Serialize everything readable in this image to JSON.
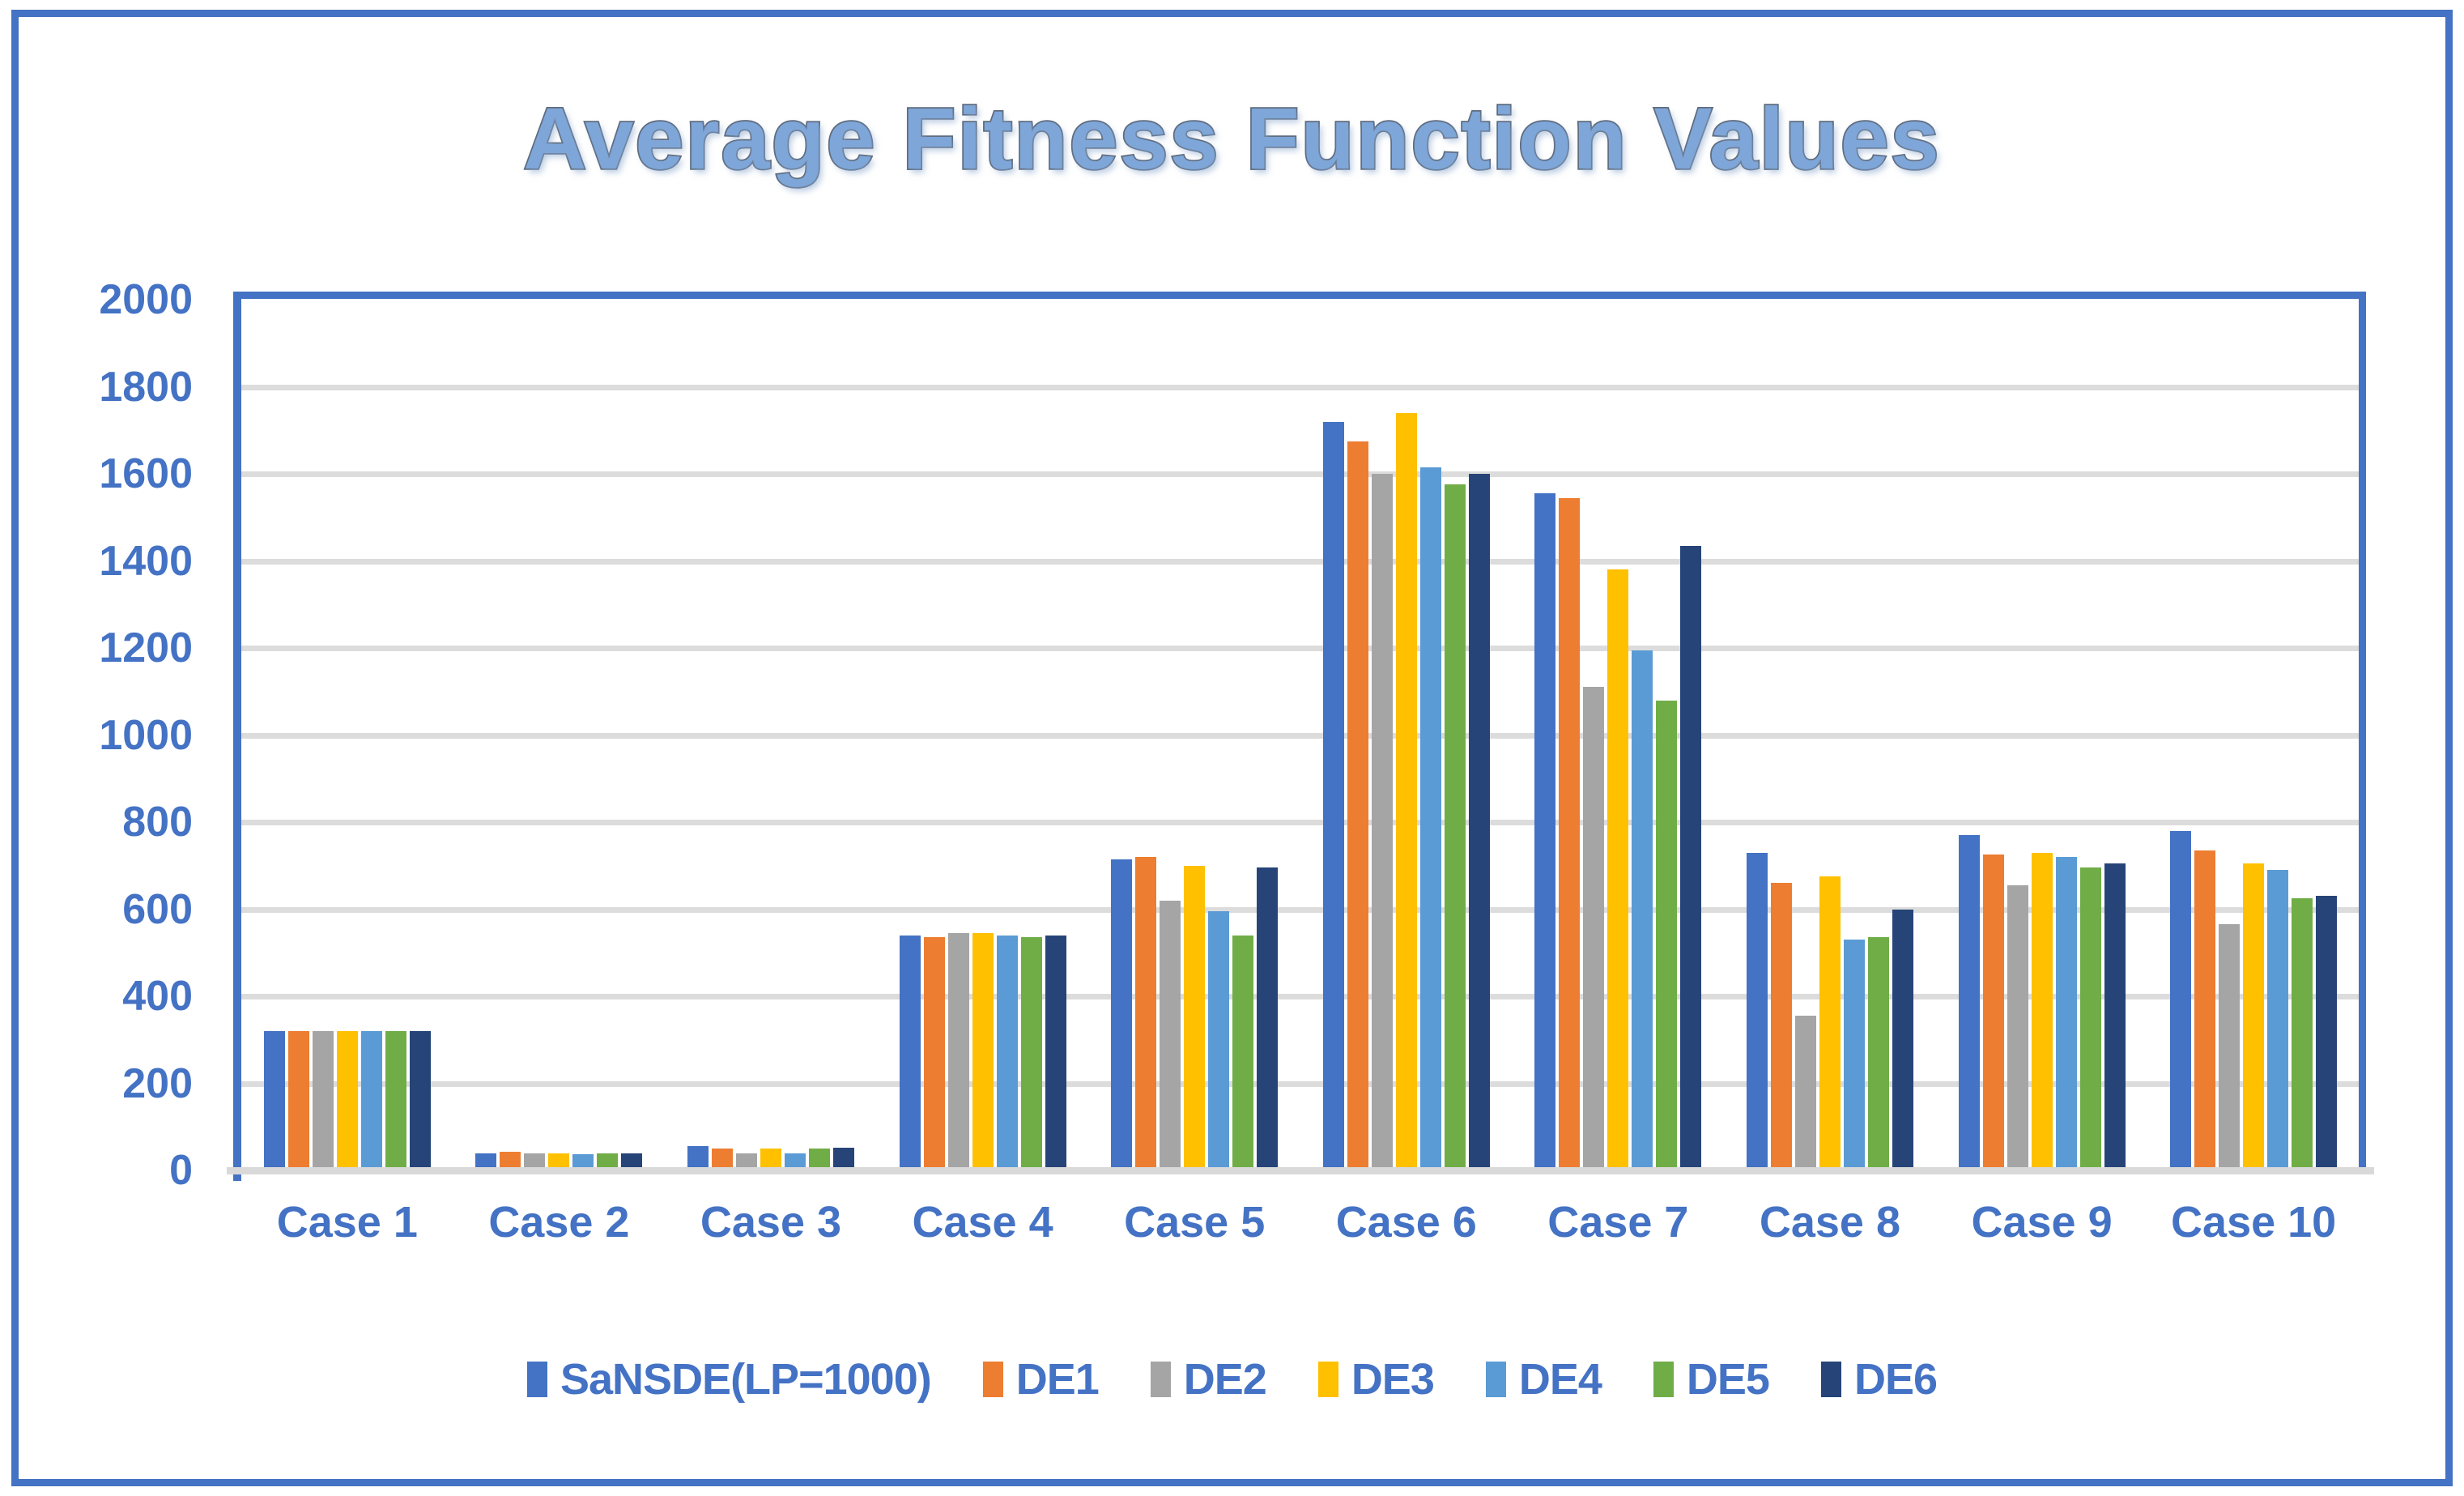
{
  "chart_data": {
    "type": "bar",
    "title": "Average Fitness Function Values",
    "categories": [
      "Case 1",
      "Case 2",
      "Case 3",
      "Case 4",
      "Case 5",
      "Case 6",
      "Case 7",
      "Case 8",
      "Case 9",
      "Case 10"
    ],
    "series": [
      {
        "name": "SaNSDE(LP=1000)",
        "color": "#4472C4",
        "values": [
          320,
          40,
          55,
          540,
          715,
          1720,
          1555,
          730,
          770,
          780
        ]
      },
      {
        "name": "DE1",
        "color": "#ED7D31",
        "values": [
          320,
          42,
          50,
          535,
          720,
          1675,
          1545,
          660,
          725,
          735
        ]
      },
      {
        "name": "DE2",
        "color": "#A5A5A5",
        "values": [
          320,
          40,
          40,
          545,
          620,
          1600,
          1110,
          355,
          655,
          565
        ]
      },
      {
        "name": "DE3",
        "color": "#FFC000",
        "values": [
          320,
          40,
          50,
          545,
          700,
          1740,
          1380,
          675,
          730,
          705
        ]
      },
      {
        "name": "DE4",
        "color": "#5B9BD5",
        "values": [
          320,
          38,
          40,
          540,
          595,
          1615,
          1195,
          530,
          720,
          690
        ]
      },
      {
        "name": "DE5",
        "color": "#70AD47",
        "values": [
          320,
          40,
          50,
          535,
          540,
          1575,
          1080,
          535,
          695,
          625
        ]
      },
      {
        "name": "DE6",
        "color": "#264478",
        "values": [
          320,
          40,
          53,
          540,
          695,
          1600,
          1435,
          600,
          705,
          630
        ]
      }
    ],
    "ylim": [
      0,
      2000
    ],
    "yticks": [
      0,
      200,
      400,
      600,
      800,
      1000,
      1200,
      1400,
      1600,
      1800,
      2000
    ],
    "grid": true,
    "legend_position": "bottom",
    "xlabel": "",
    "ylabel": ""
  },
  "frame_color": "#4472C4",
  "gridline_color": "#DCDCDC",
  "axis_text_color": "#4472C4"
}
